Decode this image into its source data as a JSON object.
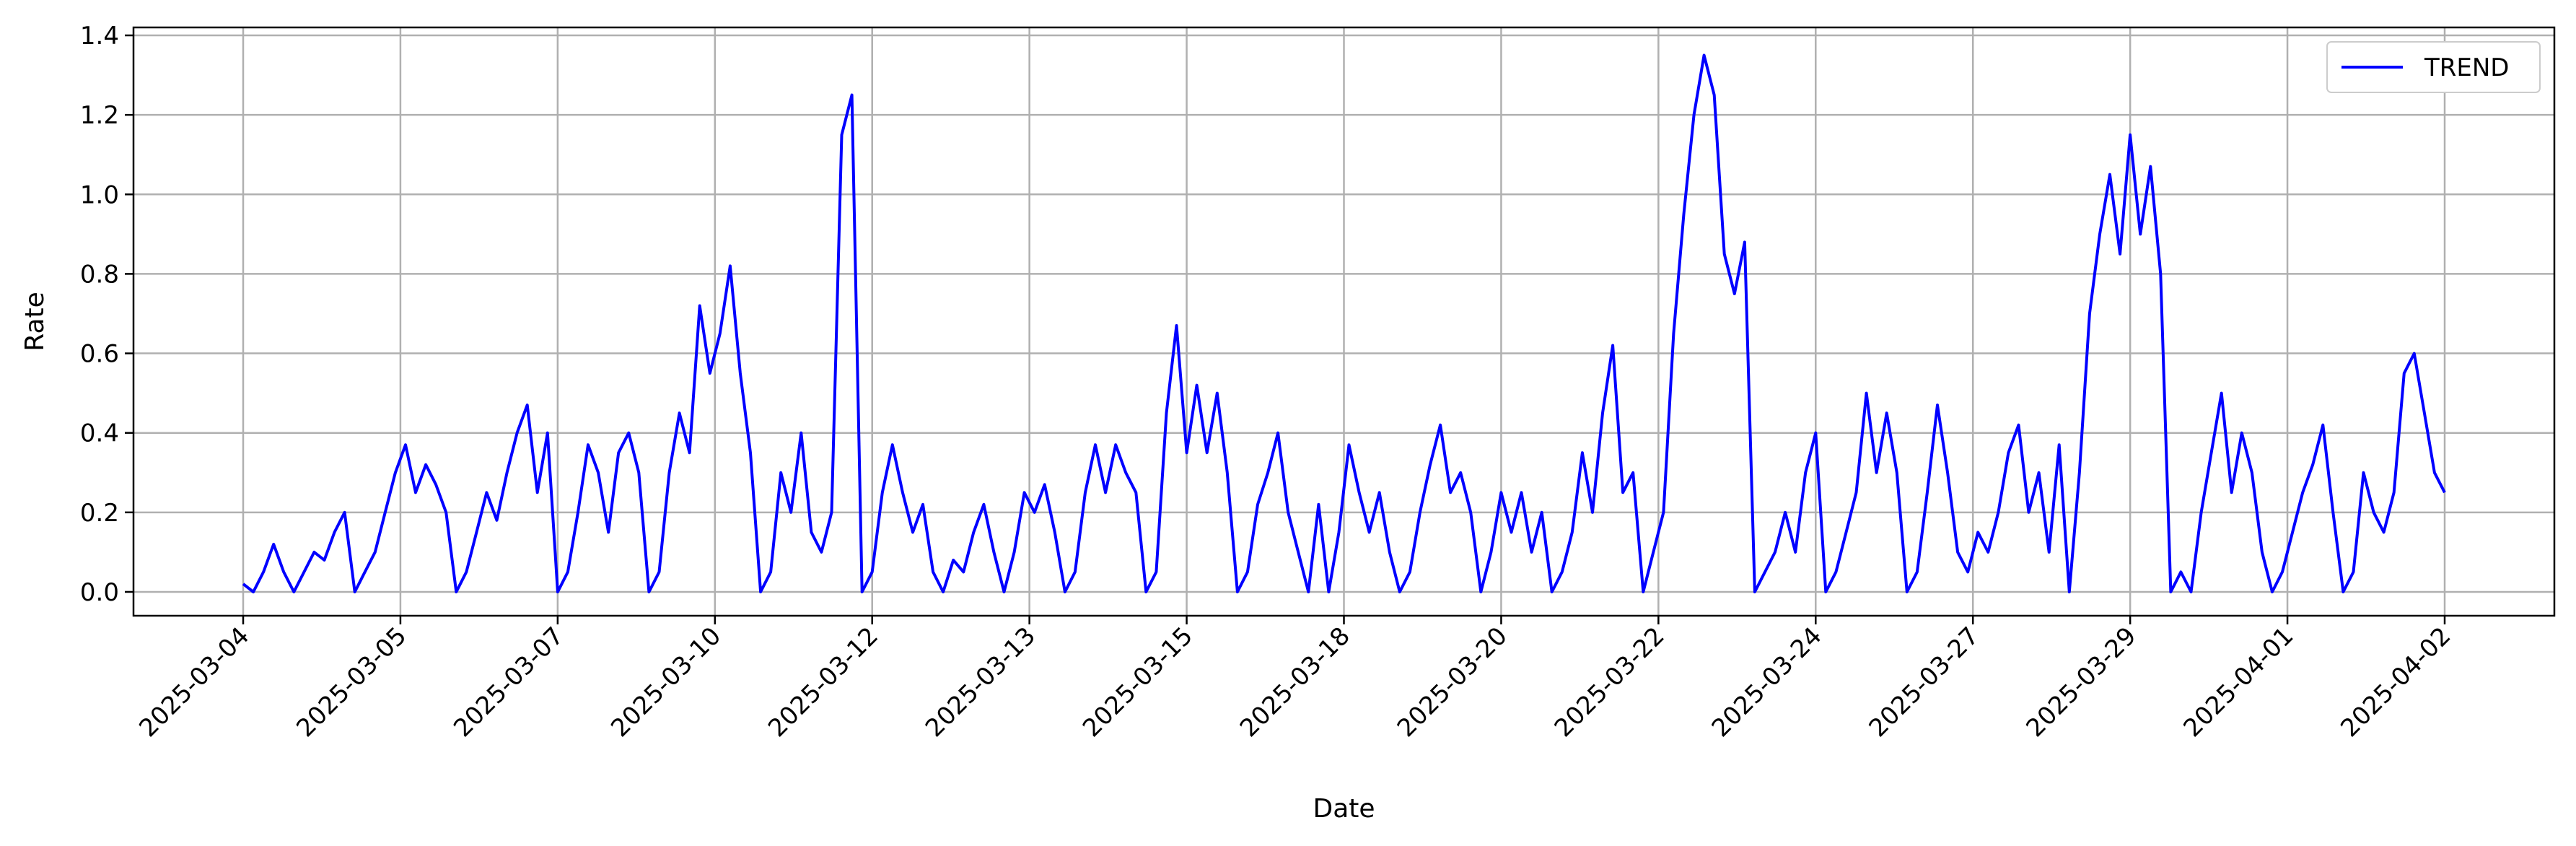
{
  "chart_data": {
    "type": "line",
    "xlabel": "Date",
    "ylabel": "Rate",
    "ylim": [
      -0.06,
      1.42
    ],
    "yticks": [
      0.0,
      0.2,
      0.4,
      0.6,
      0.8,
      1.0,
      1.2,
      1.4
    ],
    "ytick_labels": [
      "0.0",
      "0.2",
      "0.4",
      "0.6",
      "0.8",
      "1.0",
      "1.2",
      "1.4"
    ],
    "xticks": [
      "2025-03-04",
      "2025-03-05",
      "2025-03-07",
      "2025-03-10",
      "2025-03-12",
      "2025-03-13",
      "2025-03-15",
      "2025-03-18",
      "2025-03-20",
      "2025-03-22",
      "2025-03-24",
      "2025-03-27",
      "2025-03-29",
      "2025-04-01",
      "2025-04-02"
    ],
    "grid": true,
    "legend_position": "top-right",
    "series": [
      {
        "name": "TREND",
        "color": "#0000ff",
        "points": [
          [
            "2025-03-04",
            0.02
          ],
          [
            "2025-03-04",
            0.0
          ],
          [
            "2025-03-04",
            0.05
          ],
          [
            "2025-03-04",
            0.12
          ],
          [
            "2025-03-04",
            0.05
          ],
          [
            "2025-03-04",
            0.0
          ],
          [
            "2025-03-04",
            0.05
          ],
          [
            "2025-03-04",
            0.1
          ],
          [
            "2025-03-04",
            0.08
          ],
          [
            "2025-03-04",
            0.15
          ],
          [
            "2025-03-04",
            0.2
          ],
          [
            "2025-03-04",
            0.0
          ],
          [
            "2025-03-05",
            0.05
          ],
          [
            "2025-03-05",
            0.1
          ],
          [
            "2025-03-05",
            0.2
          ],
          [
            "2025-03-05",
            0.3
          ],
          [
            "2025-03-05",
            0.37
          ],
          [
            "2025-03-05",
            0.25
          ],
          [
            "2025-03-05",
            0.32
          ],
          [
            "2025-03-05",
            0.27
          ],
          [
            "2025-03-05",
            0.2
          ],
          [
            "2025-03-05",
            0.0
          ],
          [
            "2025-03-05",
            0.05
          ],
          [
            "2025-03-05",
            0.15
          ],
          [
            "2025-03-05",
            0.25
          ],
          [
            "2025-03-05",
            0.18
          ],
          [
            "2025-03-05",
            0.3
          ],
          [
            "2025-03-05",
            0.4
          ],
          [
            "2025-03-05",
            0.47
          ],
          [
            "2025-03-05",
            0.25
          ],
          [
            "2025-03-07",
            0.4
          ],
          [
            "2025-03-07",
            0.0
          ],
          [
            "2025-03-07",
            0.05
          ],
          [
            "2025-03-07",
            0.2
          ],
          [
            "2025-03-07",
            0.37
          ],
          [
            "2025-03-07",
            0.3
          ],
          [
            "2025-03-07",
            0.15
          ],
          [
            "2025-03-07",
            0.35
          ],
          [
            "2025-03-07",
            0.4
          ],
          [
            "2025-03-07",
            0.3
          ],
          [
            "2025-03-07",
            0.0
          ],
          [
            "2025-03-07",
            0.05
          ],
          [
            "2025-03-07",
            0.3
          ],
          [
            "2025-03-07",
            0.45
          ],
          [
            "2025-03-07",
            0.35
          ],
          [
            "2025-03-07",
            0.72
          ],
          [
            "2025-03-07",
            0.55
          ],
          [
            "2025-03-07",
            0.65
          ],
          [
            "2025-03-07",
            0.82
          ],
          [
            "2025-03-07",
            0.55
          ],
          [
            "2025-03-10",
            0.35
          ],
          [
            "2025-03-10",
            0.0
          ],
          [
            "2025-03-10",
            0.05
          ],
          [
            "2025-03-10",
            0.3
          ],
          [
            "2025-03-10",
            0.2
          ],
          [
            "2025-03-10",
            0.4
          ],
          [
            "2025-03-10",
            0.15
          ],
          [
            "2025-03-10",
            0.1
          ],
          [
            "2025-03-10",
            0.2
          ],
          [
            "2025-03-10",
            1.15
          ],
          [
            "2025-03-10",
            1.25
          ],
          [
            "2025-03-10",
            0.0
          ],
          [
            "2025-03-10",
            0.05
          ],
          [
            "2025-03-10",
            0.25
          ],
          [
            "2025-03-10",
            0.37
          ],
          [
            "2025-03-10",
            0.25
          ],
          [
            "2025-03-12",
            0.15
          ],
          [
            "2025-03-12",
            0.22
          ],
          [
            "2025-03-12",
            0.05
          ],
          [
            "2025-03-12",
            0.0
          ],
          [
            "2025-03-12",
            0.08
          ],
          [
            "2025-03-12",
            0.05
          ],
          [
            "2025-03-12",
            0.15
          ],
          [
            "2025-03-12",
            0.22
          ],
          [
            "2025-03-12",
            0.1
          ],
          [
            "2025-03-12",
            0.0
          ],
          [
            "2025-03-12",
            0.1
          ],
          [
            "2025-03-12",
            0.25
          ],
          [
            "2025-03-13",
            0.2
          ],
          [
            "2025-03-13",
            0.27
          ],
          [
            "2025-03-13",
            0.15
          ],
          [
            "2025-03-13",
            0.0
          ],
          [
            "2025-03-13",
            0.05
          ],
          [
            "2025-03-13",
            0.25
          ],
          [
            "2025-03-13",
            0.37
          ],
          [
            "2025-03-13",
            0.25
          ],
          [
            "2025-03-13",
            0.37
          ],
          [
            "2025-03-13",
            0.3
          ],
          [
            "2025-03-13",
            0.25
          ],
          [
            "2025-03-13",
            0.0
          ],
          [
            "2025-03-13",
            0.05
          ],
          [
            "2025-03-13",
            0.45
          ],
          [
            "2025-03-13",
            0.67
          ],
          [
            "2025-03-13",
            0.35
          ],
          [
            "2025-03-15",
            0.52
          ],
          [
            "2025-03-15",
            0.35
          ],
          [
            "2025-03-15",
            0.5
          ],
          [
            "2025-03-15",
            0.3
          ],
          [
            "2025-03-15",
            0.0
          ],
          [
            "2025-03-15",
            0.05
          ],
          [
            "2025-03-15",
            0.22
          ],
          [
            "2025-03-15",
            0.3
          ],
          [
            "2025-03-15",
            0.4
          ],
          [
            "2025-03-15",
            0.2
          ],
          [
            "2025-03-15",
            0.1
          ],
          [
            "2025-03-15",
            0.0
          ],
          [
            "2025-03-15",
            0.22
          ],
          [
            "2025-03-18",
            0.0
          ],
          [
            "2025-03-18",
            0.15
          ],
          [
            "2025-03-18",
            0.37
          ],
          [
            "2025-03-18",
            0.25
          ],
          [
            "2025-03-18",
            0.15
          ],
          [
            "2025-03-18",
            0.25
          ],
          [
            "2025-03-18",
            0.1
          ],
          [
            "2025-03-18",
            0.0
          ],
          [
            "2025-03-18",
            0.05
          ],
          [
            "2025-03-18",
            0.2
          ],
          [
            "2025-03-18",
            0.32
          ],
          [
            "2025-03-18",
            0.42
          ],
          [
            "2025-03-18",
            0.25
          ],
          [
            "2025-03-18",
            0.3
          ],
          [
            "2025-03-18",
            0.2
          ],
          [
            "2025-03-20",
            0.0
          ],
          [
            "2025-03-20",
            0.1
          ],
          [
            "2025-03-20",
            0.25
          ],
          [
            "2025-03-20",
            0.15
          ],
          [
            "2025-03-20",
            0.25
          ],
          [
            "2025-03-20",
            0.1
          ],
          [
            "2025-03-20",
            0.2
          ],
          [
            "2025-03-20",
            0.0
          ],
          [
            "2025-03-20",
            0.05
          ],
          [
            "2025-03-20",
            0.15
          ],
          [
            "2025-03-20",
            0.35
          ],
          [
            "2025-03-20",
            0.2
          ],
          [
            "2025-03-20",
            0.45
          ],
          [
            "2025-03-20",
            0.62
          ],
          [
            "2025-03-20",
            0.25
          ],
          [
            "2025-03-20",
            0.3
          ],
          [
            "2025-03-22",
            0.0
          ],
          [
            "2025-03-22",
            0.1
          ],
          [
            "2025-03-22",
            0.2
          ],
          [
            "2025-03-22",
            0.65
          ],
          [
            "2025-03-22",
            0.95
          ],
          [
            "2025-03-22",
            1.2
          ],
          [
            "2025-03-22",
            1.35
          ],
          [
            "2025-03-22",
            1.25
          ],
          [
            "2025-03-22",
            0.85
          ],
          [
            "2025-03-22",
            0.75
          ],
          [
            "2025-03-22",
            0.88
          ],
          [
            "2025-03-22",
            0.0
          ],
          [
            "2025-03-22",
            0.05
          ],
          [
            "2025-03-22",
            0.1
          ],
          [
            "2025-03-22",
            0.2
          ],
          [
            "2025-03-24",
            0.1
          ],
          [
            "2025-03-24",
            0.3
          ],
          [
            "2025-03-24",
            0.4
          ],
          [
            "2025-03-24",
            0.0
          ],
          [
            "2025-03-24",
            0.05
          ],
          [
            "2025-03-24",
            0.15
          ],
          [
            "2025-03-24",
            0.25
          ],
          [
            "2025-03-24",
            0.5
          ],
          [
            "2025-03-24",
            0.3
          ],
          [
            "2025-03-24",
            0.45
          ],
          [
            "2025-03-24",
            0.3
          ],
          [
            "2025-03-24",
            0.0
          ],
          [
            "2025-03-24",
            0.05
          ],
          [
            "2025-03-24",
            0.25
          ],
          [
            "2025-03-27",
            0.47
          ],
          [
            "2025-03-27",
            0.3
          ],
          [
            "2025-03-27",
            0.1
          ],
          [
            "2025-03-27",
            0.05
          ],
          [
            "2025-03-27",
            0.15
          ],
          [
            "2025-03-27",
            0.1
          ],
          [
            "2025-03-27",
            0.2
          ],
          [
            "2025-03-27",
            0.35
          ],
          [
            "2025-03-27",
            0.42
          ],
          [
            "2025-03-27",
            0.2
          ],
          [
            "2025-03-27",
            0.3
          ],
          [
            "2025-03-27",
            0.1
          ],
          [
            "2025-03-27",
            0.37
          ],
          [
            "2025-03-27",
            0.0
          ],
          [
            "2025-03-27",
            0.3
          ],
          [
            "2025-03-29",
            0.7
          ],
          [
            "2025-03-29",
            0.9
          ],
          [
            "2025-03-29",
            1.05
          ],
          [
            "2025-03-29",
            0.85
          ],
          [
            "2025-03-29",
            1.15
          ],
          [
            "2025-03-29",
            0.9
          ],
          [
            "2025-03-29",
            1.07
          ],
          [
            "2025-03-29",
            0.8
          ],
          [
            "2025-03-29",
            0.0
          ],
          [
            "2025-03-29",
            0.05
          ],
          [
            "2025-03-29",
            0.0
          ],
          [
            "2025-03-29",
            0.2
          ],
          [
            "2025-03-29",
            0.35
          ],
          [
            "2025-03-29",
            0.5
          ],
          [
            "2025-03-29",
            0.25
          ],
          [
            "2025-04-01",
            0.4
          ],
          [
            "2025-04-01",
            0.3
          ],
          [
            "2025-04-01",
            0.1
          ],
          [
            "2025-04-01",
            0.0
          ],
          [
            "2025-04-01",
            0.05
          ],
          [
            "2025-04-01",
            0.15
          ],
          [
            "2025-04-01",
            0.25
          ],
          [
            "2025-04-01",
            0.32
          ],
          [
            "2025-04-01",
            0.42
          ],
          [
            "2025-04-01",
            0.2
          ],
          [
            "2025-04-01",
            0.0
          ],
          [
            "2025-04-01",
            0.05
          ],
          [
            "2025-04-01",
            0.3
          ],
          [
            "2025-04-01",
            0.2
          ],
          [
            "2025-04-01",
            0.15
          ],
          [
            "2025-04-01",
            0.25
          ],
          [
            "2025-04-02",
            0.55
          ],
          [
            "2025-04-02",
            0.6
          ],
          [
            "2025-04-02",
            0.45
          ],
          [
            "2025-04-02",
            0.3
          ],
          [
            "2025-04-02",
            0.25
          ]
        ]
      }
    ]
  }
}
